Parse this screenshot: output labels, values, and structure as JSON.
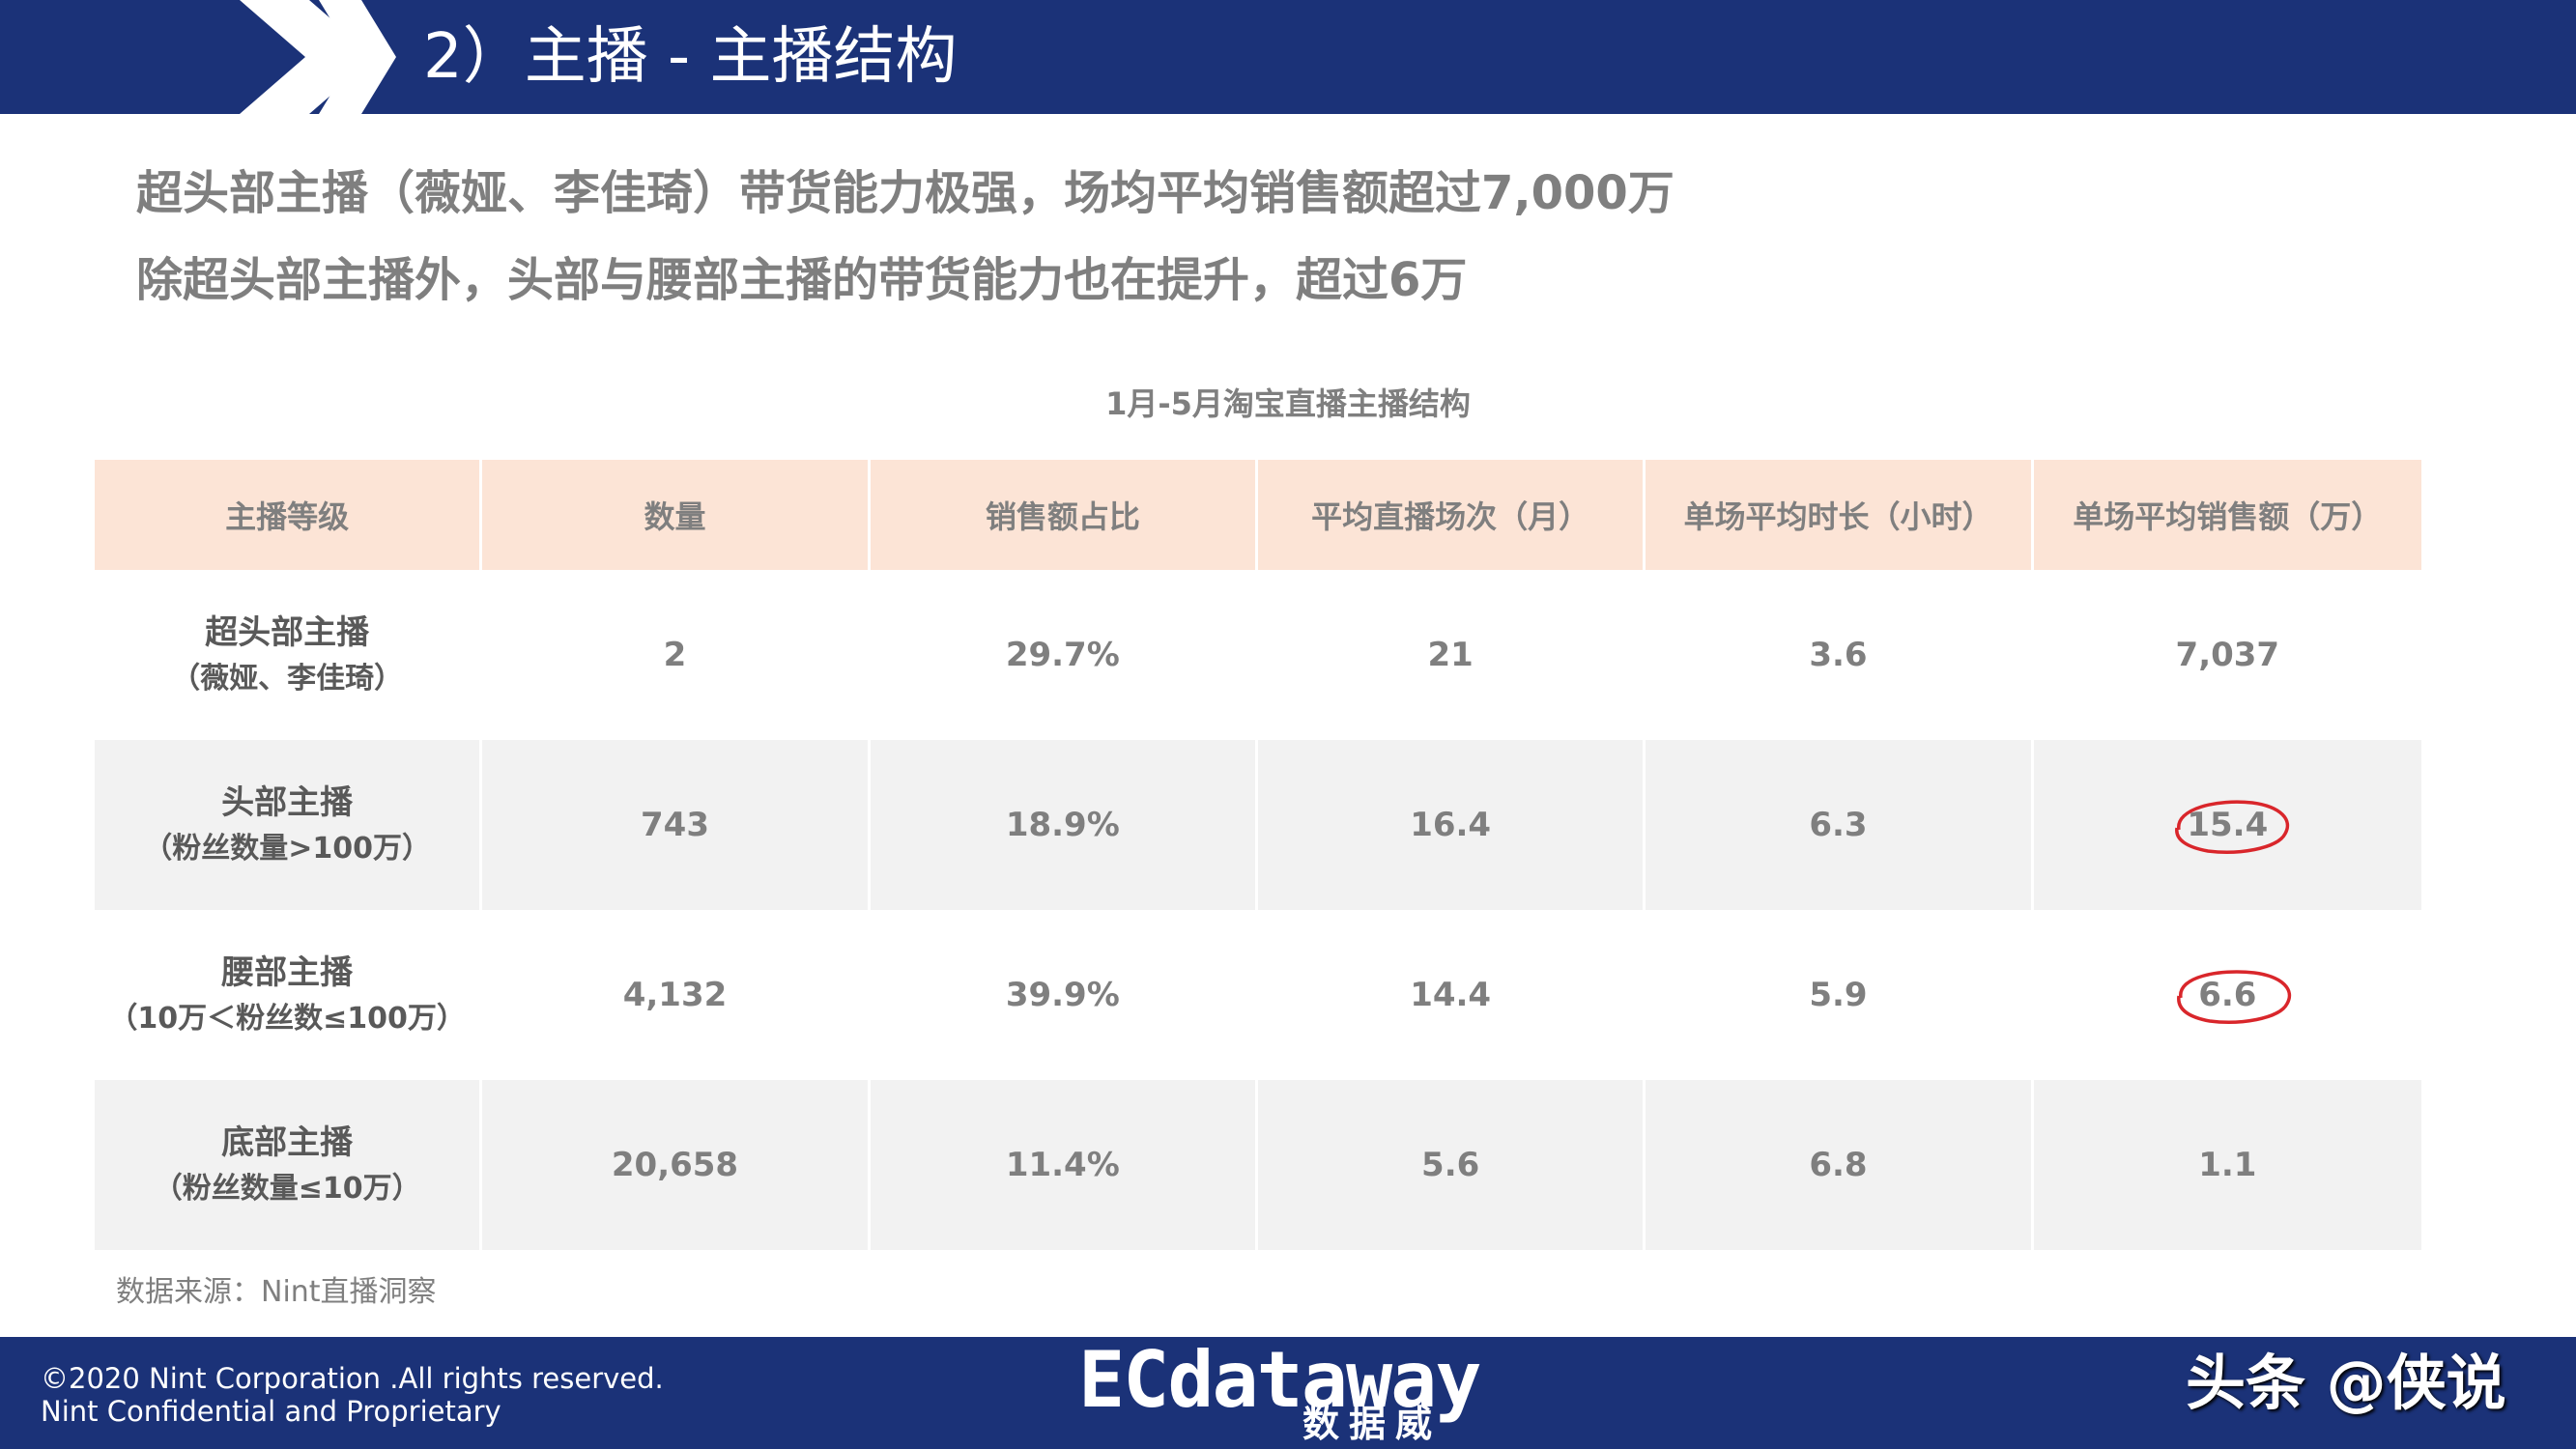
{
  "header": {
    "title": "2）主播 - 主播结构"
  },
  "summary": {
    "line1": "超头部主播（薇娅、李佳琦）带货能力极强，场均平均销售额超过7,000万",
    "line2": "除超头部主播外，头部与腰部主播的带货能力也在提升，超过6万"
  },
  "table": {
    "title": "1月-5月淘宝直播主播结构",
    "headers": [
      "主播等级",
      "数量",
      "销售额占比",
      "平均直播场次（月）",
      "单场平均时长（小时）",
      "单场平均销售额（万）"
    ],
    "rows": [
      {
        "name": "超头部主播",
        "sub": "（薇娅、李佳琦）",
        "count": "2",
        "share": "29.7%",
        "sessions": "21",
        "duration": "3.6",
        "avg_sales": "7,037"
      },
      {
        "name": "头部主播",
        "sub": "（粉丝数量>100万）",
        "count": "743",
        "share": "18.9%",
        "sessions": "16.4",
        "duration": "6.3",
        "avg_sales": "15.4"
      },
      {
        "name": "腰部主播",
        "sub": "（10万＜粉丝数≤100万）",
        "count": "4,132",
        "share": "39.9%",
        "sessions": "14.4",
        "duration": "5.9",
        "avg_sales": "6.6"
      },
      {
        "name": "底部主播",
        "sub": "（粉丝数量≤10万）",
        "count": "20,658",
        "share": "11.4%",
        "sessions": "5.6",
        "duration": "6.8",
        "avg_sales": "1.1"
      }
    ],
    "source": "数据来源：Nint直播洞察"
  },
  "footer": {
    "copyright_line1": "©2020 Nint Corporation .All rights reserved.",
    "copyright_line2": "Nint Confidential and Proprietary",
    "logo_main": "ECdataway",
    "logo_sub": "数据威",
    "watermark": "头条 @侠说"
  },
  "colors": {
    "navy": "#1b3278",
    "header_row": "#fce4d6",
    "stripe": "#f2f2f2",
    "text_gray": "#7f7f7f",
    "circle_red": "#d9262b"
  },
  "icons": [
    "double-chevron-icon",
    "red-circle-annotation"
  ]
}
